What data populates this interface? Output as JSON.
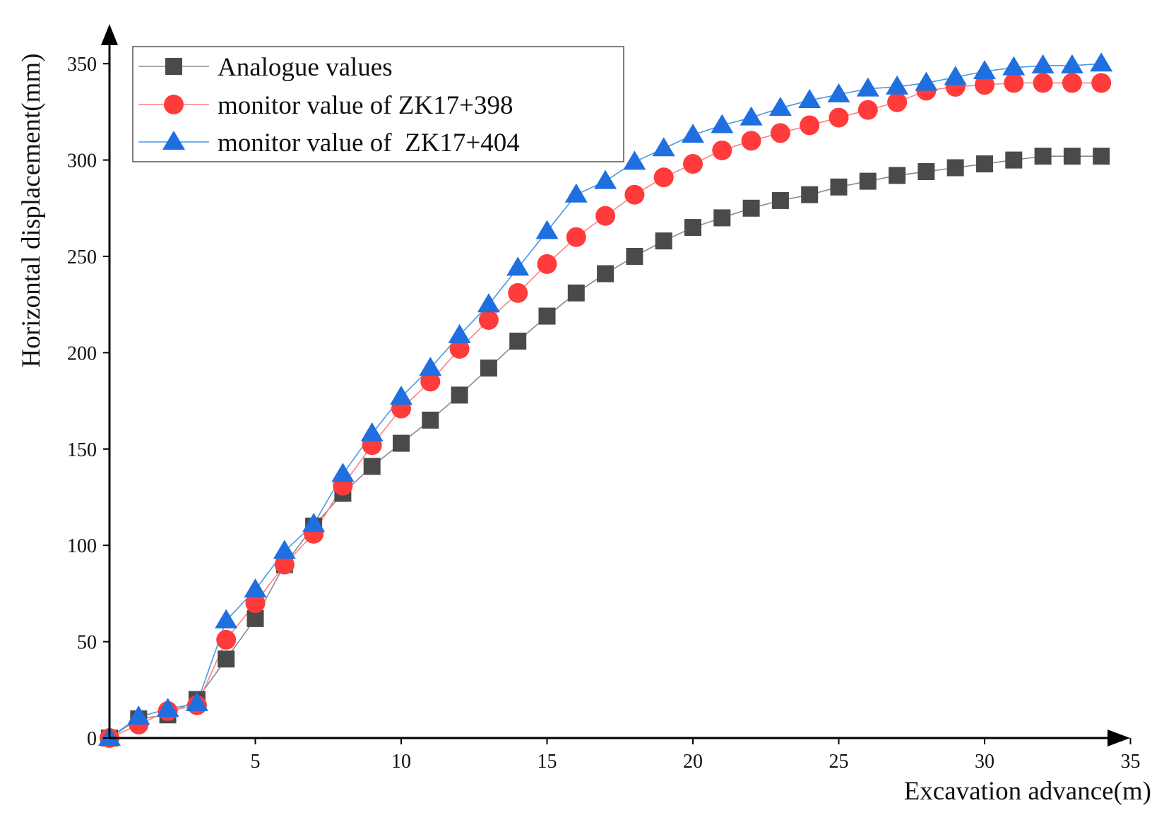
{
  "chart_data": {
    "type": "line",
    "title": "",
    "xlabel": "Excavation advance(m)",
    "ylabel": "Horizontal displacement(mm)",
    "xlim": [
      0,
      35
    ],
    "ylim": [
      0,
      350
    ],
    "xticks": [
      5,
      10,
      15,
      20,
      25,
      30,
      35
    ],
    "yticks": [
      0,
      50,
      100,
      150,
      200,
      250,
      300,
      350
    ],
    "grid": false,
    "legend_position": "top-left",
    "x": [
      0,
      1,
      2,
      3,
      4,
      5,
      6,
      7,
      8,
      9,
      10,
      11,
      12,
      13,
      14,
      15,
      16,
      17,
      18,
      19,
      20,
      21,
      22,
      23,
      24,
      25,
      26,
      27,
      28,
      29,
      30,
      31,
      32,
      33,
      34
    ],
    "series": [
      {
        "name": "Analogue values",
        "marker": "square",
        "color": "#4a4a4a",
        "line_color": "#8a8a8a",
        "values": [
          0,
          10,
          12,
          20,
          41,
          62,
          90,
          110,
          127,
          141,
          153,
          165,
          178,
          192,
          206,
          219,
          231,
          241,
          250,
          258,
          265,
          270,
          275,
          279,
          282,
          286,
          289,
          292,
          294,
          296,
          298,
          300,
          302,
          302,
          302
        ]
      },
      {
        "name": "monitor value of ZK17+398",
        "marker": "circle",
        "color": "#ff3b3b",
        "line_color": "#ff8080",
        "values": [
          0,
          7,
          14,
          17,
          51,
          70,
          90,
          106,
          131,
          152,
          171,
          185,
          202,
          217,
          231,
          246,
          260,
          271,
          282,
          291,
          298,
          305,
          310,
          314,
          318,
          322,
          326,
          330,
          336,
          338,
          339,
          340,
          340,
          340,
          340
        ]
      },
      {
        "name": "monitor value of  ZK17+404",
        "marker": "triangle",
        "color": "#1f6fe0",
        "line_color": "#4a98e6",
        "values": [
          0,
          11,
          15,
          18,
          61,
          77,
          97,
          111,
          137,
          158,
          177,
          192,
          209,
          225,
          244,
          263,
          282,
          289,
          299,
          306,
          313,
          318,
          322,
          327,
          331,
          334,
          337,
          338,
          340,
          343,
          346,
          348,
          349,
          349,
          350
        ]
      }
    ]
  }
}
